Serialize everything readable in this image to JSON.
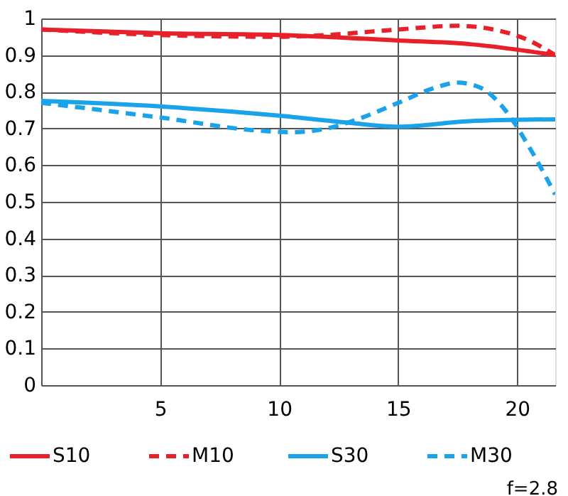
{
  "chart_data": {
    "type": "line",
    "xlim": [
      0,
      21.6
    ],
    "xticks": [
      {
        "value": 0,
        "label": null
      },
      5,
      10,
      15,
      20
    ],
    "ylim": [
      0,
      1
    ],
    "yticks": [
      {
        "value": 0,
        "label": "0"
      },
      0.1,
      0.2,
      0.3,
      0.4,
      0.5,
      0.6,
      0.7,
      0.8,
      0.9,
      {
        "value": 1,
        "label": "1"
      }
    ],
    "grid": true,
    "legend": "bottom",
    "annotations": [
      "f=2.8"
    ],
    "series": [
      {
        "name": "S10",
        "color": "#e8202a",
        "line_style": "solid",
        "x": [
          0,
          5,
          10,
          15,
          18,
          20,
          21.6
        ],
        "values": [
          0.97,
          0.96,
          0.955,
          0.94,
          0.93,
          0.915,
          0.9
        ]
      },
      {
        "name": "M10",
        "color": "#e8202a",
        "line_style": "dashed",
        "x": [
          0,
          5,
          10,
          12,
          15,
          17.5,
          19,
          20.5,
          21.6
        ],
        "values": [
          0.97,
          0.955,
          0.95,
          0.955,
          0.97,
          0.98,
          0.97,
          0.94,
          0.9
        ]
      },
      {
        "name": "S30",
        "color": "#1aa3e8",
        "line_style": "solid",
        "x": [
          0,
          5,
          10,
          13,
          15,
          18,
          21.6
        ],
        "values": [
          0.775,
          0.76,
          0.735,
          0.715,
          0.705,
          0.72,
          0.725
        ]
      },
      {
        "name": "M30",
        "color": "#1aa3e8",
        "line_style": "dashed",
        "x": [
          0,
          5,
          9,
          10.5,
          12,
          13.5,
          15,
          16.5,
          17.5,
          18.5,
          19.5,
          20.5,
          21.6
        ],
        "values": [
          0.77,
          0.73,
          0.695,
          0.69,
          0.7,
          0.73,
          0.77,
          0.81,
          0.825,
          0.81,
          0.75,
          0.65,
          0.52
        ]
      }
    ]
  }
}
